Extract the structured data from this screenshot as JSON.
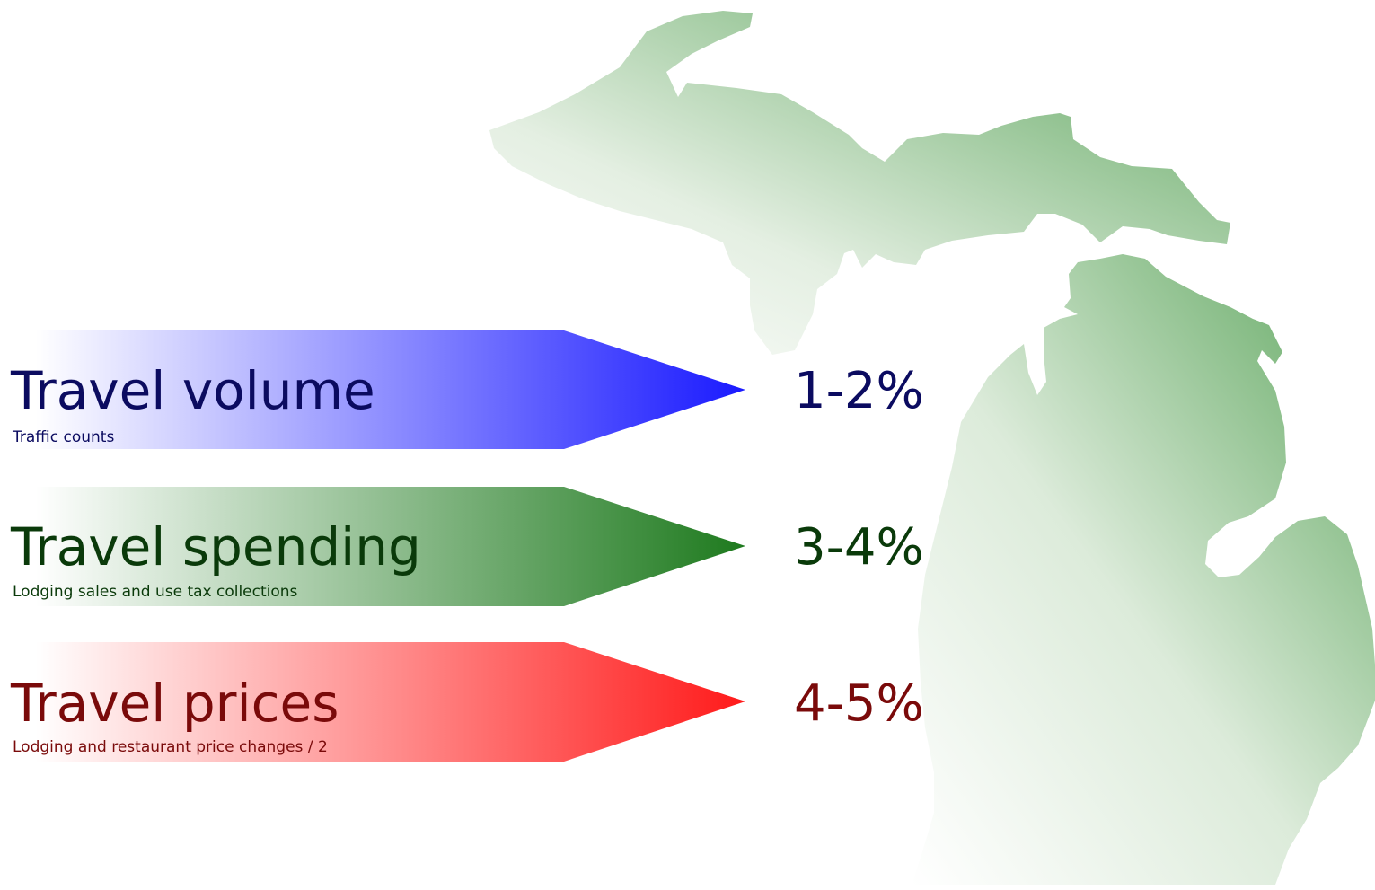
{
  "rows": [
    {
      "title": "Travel volume",
      "subtitle": "Traffic counts",
      "percent": "1-2%",
      "text_color": "#0b0b60",
      "arrow_color": "#1a1aff"
    },
    {
      "title": "Travel spending",
      "subtitle": "Lodging sales and use tax collections",
      "percent": "3-4%",
      "text_color": "#0a3a0a",
      "arrow_color": "#1e7a1e"
    },
    {
      "title": "Travel prices",
      "subtitle": "Lodging and restaurant price changes / 2",
      "percent": "4-5%",
      "text_color": "#7a0a0a",
      "arrow_color": "#ff1a1a"
    }
  ],
  "map": {
    "label": "michigan-map",
    "color": "#5aa45a"
  }
}
